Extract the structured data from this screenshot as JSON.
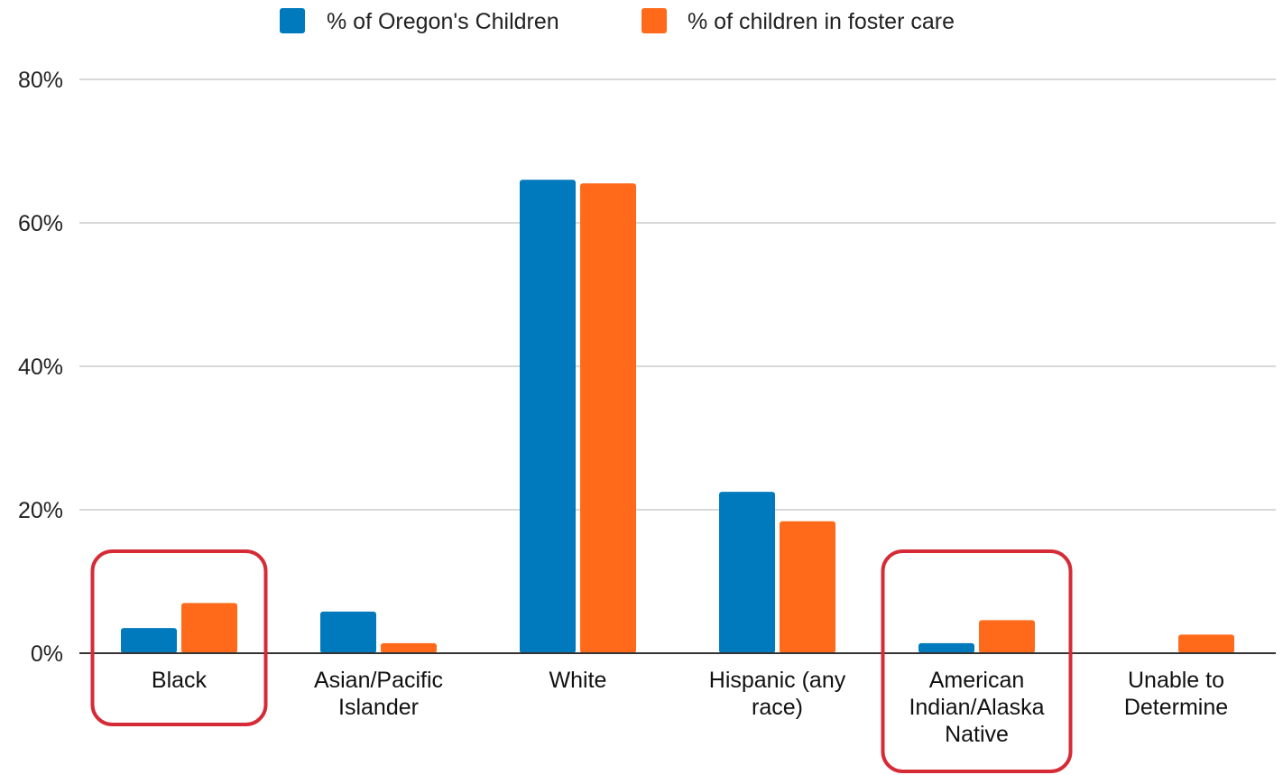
{
  "chart_data": {
    "type": "bar",
    "categories": [
      [
        "Black"
      ],
      [
        "Asian/Pacific",
        "Islander"
      ],
      [
        "White"
      ],
      [
        "Hispanic (any",
        "race)"
      ],
      [
        "American",
        "Indian/Alaska",
        "Native"
      ],
      [
        "Unable to",
        "Determine"
      ]
    ],
    "series": [
      {
        "name": "% of Oregon's Children",
        "color": "#0079bd",
        "values": [
          3.5,
          5.8,
          66.0,
          22.5,
          1.4,
          0
        ]
      },
      {
        "name": "% of children in foster care",
        "color": "#ff6a1a",
        "values": [
          7.0,
          1.4,
          65.5,
          18.4,
          4.6,
          2.6
        ]
      }
    ],
    "ylim": [
      0,
      80
    ],
    "yticks": [
      0,
      20,
      40,
      60,
      80
    ],
    "ytick_labels": [
      "0%",
      "20%",
      "40%",
      "60%",
      "80%"
    ],
    "grid": true,
    "legend_position": "top",
    "highlighted_categories": [
      0,
      4
    ],
    "highlight_color": "#d62b36"
  }
}
